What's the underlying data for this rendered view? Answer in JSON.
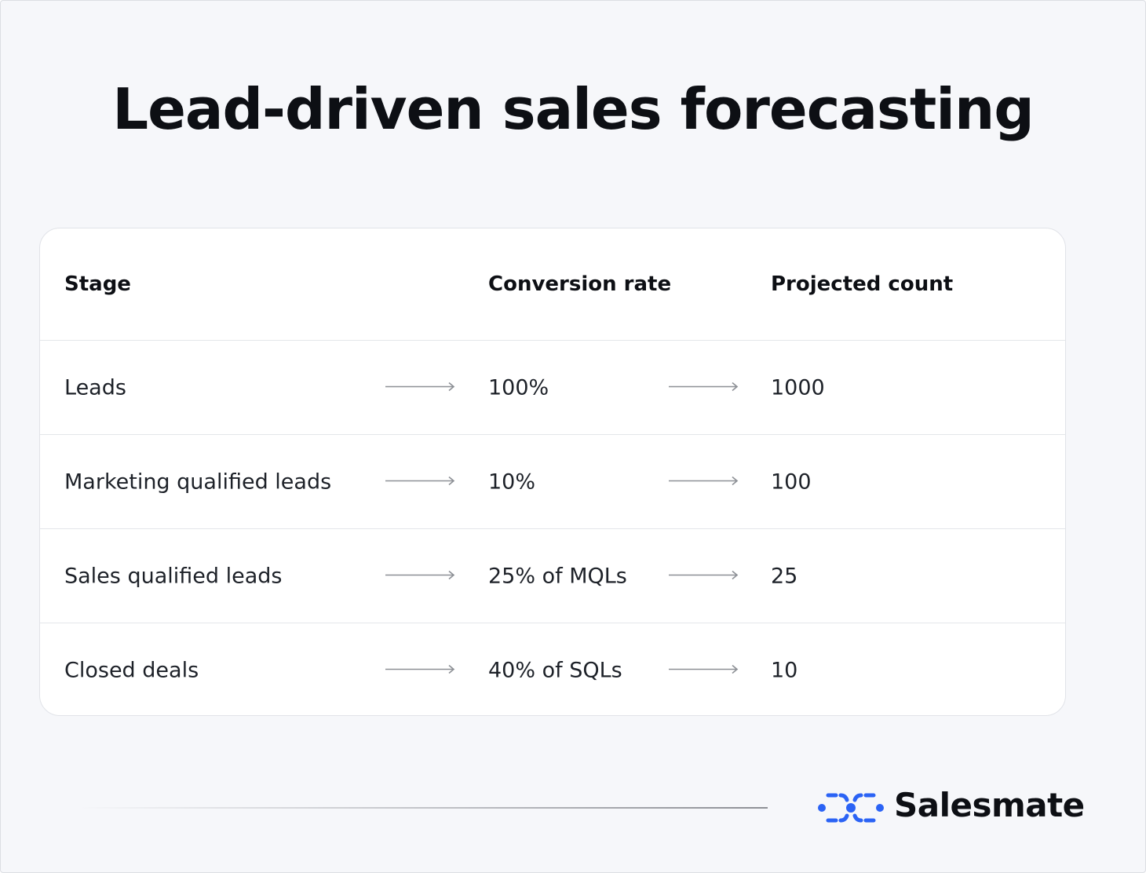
{
  "header": {
    "title": "Lead-driven sales forecasting"
  },
  "table": {
    "columns": [
      "Stage",
      "Conversion rate",
      "Projected count"
    ],
    "rows": [
      [
        "Leads",
        "100%",
        "1000"
      ],
      [
        "Marketing qualified leads",
        "10%",
        "100"
      ],
      [
        "Sales qualified leads",
        "25% of MQLs",
        "25"
      ],
      [
        "Closed deals",
        "40% of SQLs",
        "10"
      ]
    ]
  },
  "footer": {
    "brand": "Salesmate"
  }
}
